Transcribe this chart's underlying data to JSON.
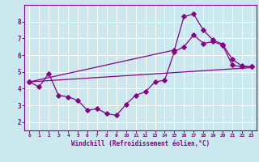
{
  "xlabel": "Windchill (Refroidissement éolien,°C)",
  "bg_color": "#cce8ef",
  "grid_color": "#ffffff",
  "line_color": "#880088",
  "xlim": [
    -0.5,
    23.5
  ],
  "ylim": [
    1.5,
    9.0
  ],
  "xticks": [
    0,
    1,
    2,
    3,
    4,
    5,
    6,
    7,
    8,
    9,
    10,
    11,
    12,
    13,
    14,
    15,
    16,
    17,
    18,
    19,
    20,
    21,
    22,
    23
  ],
  "yticks": [
    2,
    3,
    4,
    5,
    6,
    7,
    8
  ],
  "line1_x": [
    0,
    1,
    2,
    3,
    4,
    5,
    6,
    7,
    8,
    9,
    10,
    11,
    12,
    13,
    14,
    15,
    16,
    17,
    18,
    19,
    20,
    21,
    22,
    23
  ],
  "line1_y": [
    4.4,
    4.1,
    4.9,
    3.6,
    3.5,
    3.3,
    2.7,
    2.8,
    2.5,
    2.4,
    3.05,
    3.6,
    3.8,
    4.4,
    4.5,
    6.2,
    6.5,
    7.2,
    6.7,
    6.8,
    6.6,
    5.4,
    5.3,
    5.3
  ],
  "line2_x": [
    0,
    23
  ],
  "line2_y": [
    4.4,
    5.25
  ],
  "line3_x": [
    0,
    15,
    16,
    17,
    18,
    19,
    20,
    21,
    22,
    23
  ],
  "line3_y": [
    4.4,
    6.3,
    8.3,
    8.45,
    7.5,
    6.9,
    6.65,
    5.75,
    5.35,
    5.3
  ]
}
